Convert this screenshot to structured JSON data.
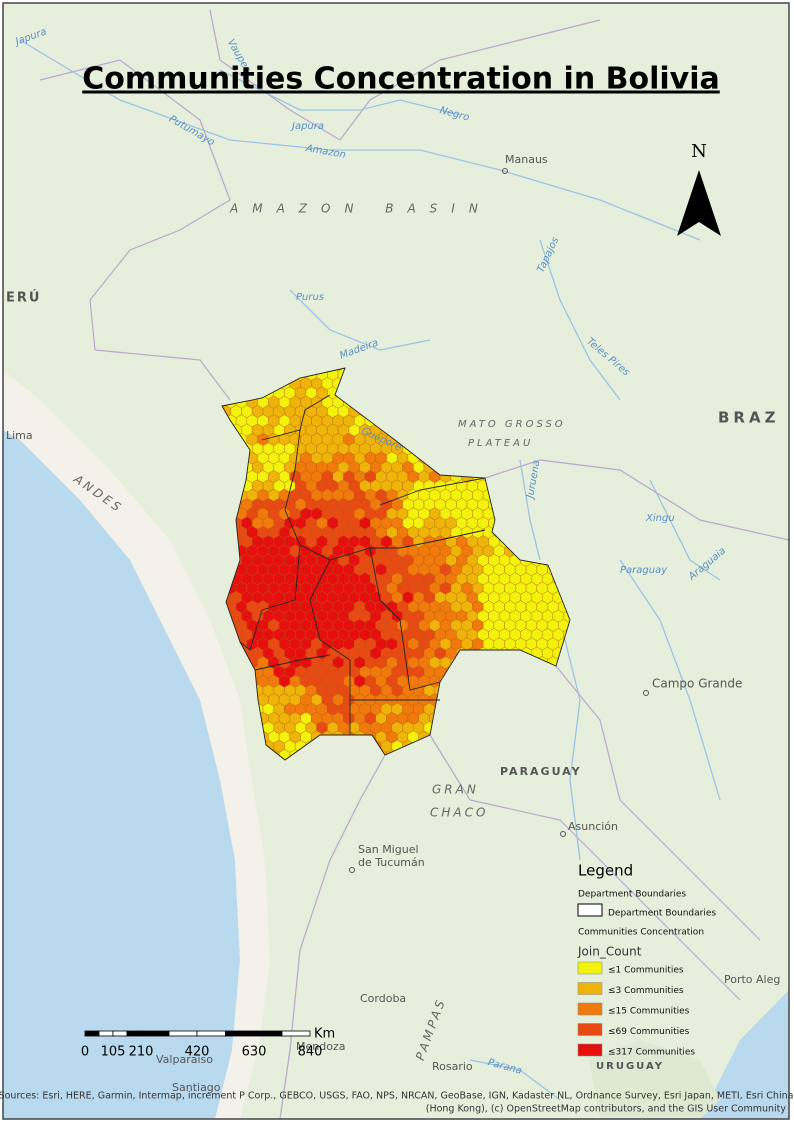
{
  "title": "Communities Concentration in Bolivia",
  "north_arrow": "N",
  "map_labels": [
    "Japura",
    "Vaupes",
    "Negro",
    "Japura",
    "Amazon",
    "Putumayo",
    "Manaus",
    "AMAZON BASIN",
    "ERÚ",
    "Purus",
    "Madeira",
    "Tapajos",
    "Teles Pires",
    "MATO GROSSO",
    "PLATEAU",
    "BRAZ",
    "Lima",
    "ANDES",
    "Guapore",
    "Juruena",
    "Xingu",
    "Paraguay",
    "Araguaia",
    "Campo Grande",
    "PARAGUAY",
    "GRAN",
    "CHACO",
    "Asunción",
    "San Miguel",
    "de Tucumán",
    "PAMPAS",
    "Cordoba",
    "Porto Aleg",
    "Rosario",
    "Parana",
    "URUGUAY",
    "Valparaiso",
    "Mendoza",
    "Santiago"
  ],
  "legend": {
    "title": "Legend",
    "layers": [
      {
        "name": "Department Boundaries",
        "items": [
          {
            "label": "Department Boundaries"
          }
        ]
      },
      {
        "name": "Communities Concentration",
        "field": "Join_Count",
        "items": [
          {
            "label": "≤1 Communities",
            "color": "#f2f20c"
          },
          {
            "label": "≤3 Communities",
            "color": "#efb40a"
          },
          {
            "label": "≤15 Communities",
            "color": "#f07a0c"
          },
          {
            "label": "≤69 Communities",
            "color": "#e84a14"
          },
          {
            "label": "≤317 Communities",
            "color": "#e60f0f"
          }
        ]
      }
    ]
  },
  "scale_bar": {
    "unit": "Km",
    "labels": [
      "0",
      "105",
      "210",
      "420",
      "630",
      "840"
    ]
  },
  "attribution": [
    "Sources: Esri, HERE, Garmin, Intermap, increment P Corp., GEBCO, USGS, FAO, NPS, NRCAN, GeoBase, IGN, Kadaster NL, Ordnance Survey, Esri Japan, METI, Esri China",
    "(Hong Kong), (c) OpenStreetMap contributors, and the GIS User Community"
  ]
}
